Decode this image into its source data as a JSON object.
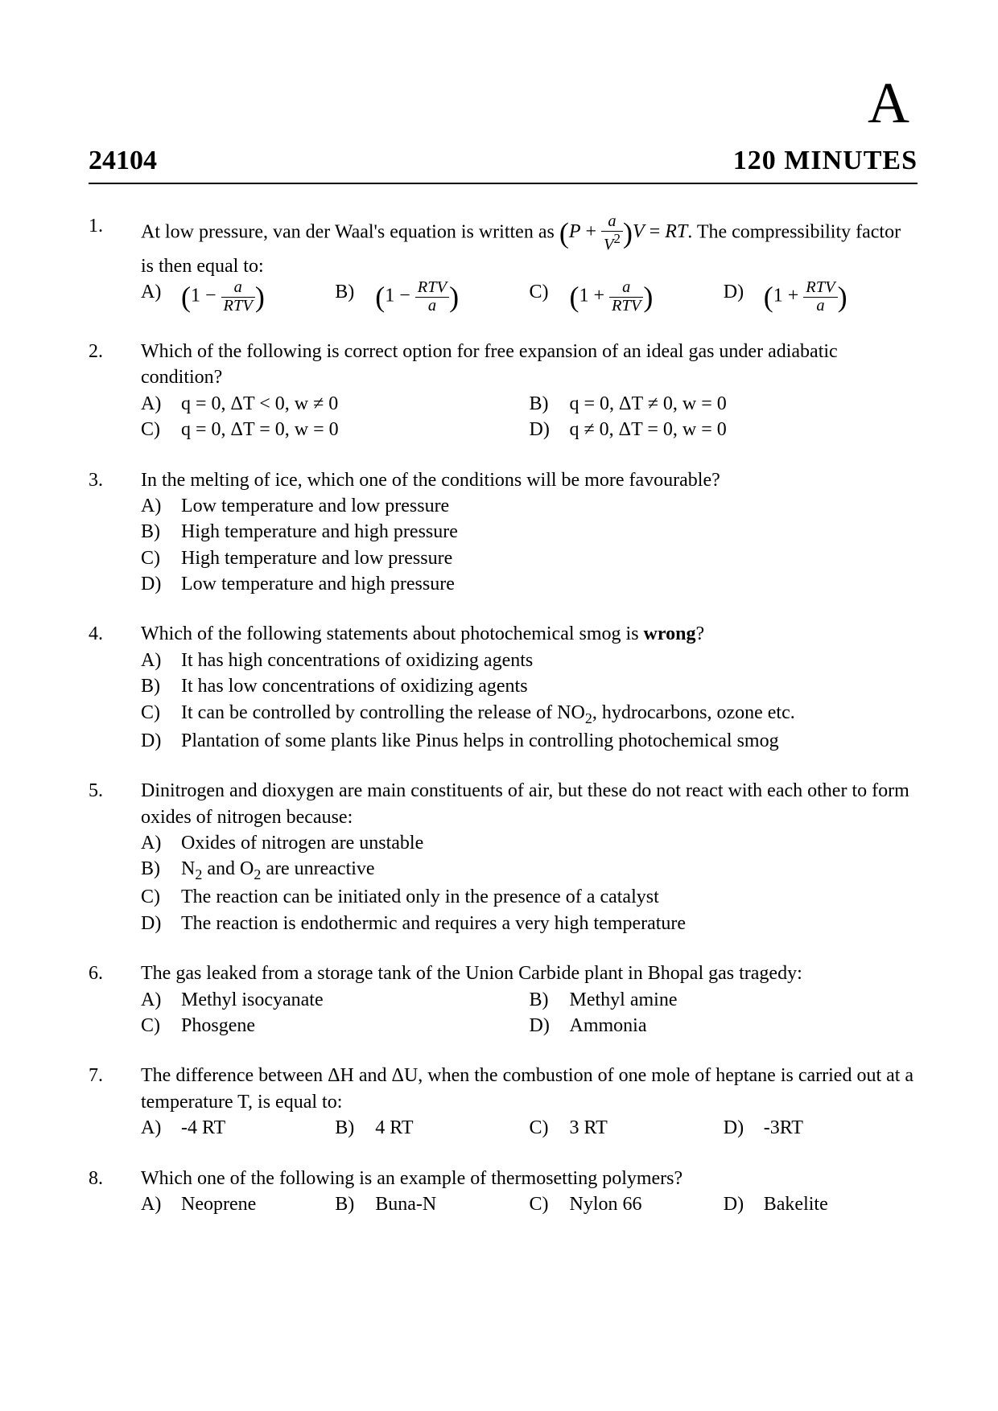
{
  "header": {
    "letter": "A",
    "code": "24104",
    "minutes": "120  MINUTES"
  },
  "q1": {
    "num": "1.",
    "stem_a": "At low pressure, van der Waal's equation is written as ",
    "stem_b": ". The compressibility factor is then equal to:",
    "optA_label": "A)",
    "optB_label": "B)",
    "optC_label": "C)",
    "optD_label": "D)"
  },
  "q2": {
    "num": "2.",
    "stem": "Which of the following is correct option for free expansion of an ideal gas under adiabatic condition?",
    "A_label": "A)",
    "A_text": "q = 0, ΔT < 0, w ≠ 0",
    "B_label": "B)",
    "B_text": "q = 0, ΔT ≠ 0, w = 0",
    "C_label": "C)",
    "C_text": "q = 0, ΔT = 0, w = 0",
    "D_label": "D)",
    "D_text": "q ≠ 0, ΔT = 0, w = 0"
  },
  "q3": {
    "num": "3.",
    "stem": "In the melting of ice, which one of the conditions will be more favourable?",
    "A_label": "A)",
    "A_text": "Low temperature and low pressure",
    "B_label": "B)",
    "B_text": "High temperature and high pressure",
    "C_label": "C)",
    "C_text": "High temperature and low pressure",
    "D_label": "D)",
    "D_text": "Low temperature and high pressure"
  },
  "q4": {
    "num": "4.",
    "stem_a": "Which of the following statements about photochemical smog is ",
    "stem_bold": "wrong",
    "stem_b": "?",
    "A_label": "A)",
    "A_text": "It has high concentrations of oxidizing agents",
    "B_label": "B)",
    "B_text": "It has low concentrations of oxidizing agents",
    "C_label": "C)",
    "C_text_a": "It can be controlled by controlling the release of NO",
    "C_sub": "2",
    "C_text_b": ", hydrocarbons, ozone etc.",
    "D_label": "D)",
    "D_text": "Plantation of some plants like Pinus helps in controlling photochemical smog"
  },
  "q5": {
    "num": "5.",
    "stem": "Dinitrogen and dioxygen are main constituents of air, but these do not react with each other to form oxides of nitrogen because:",
    "A_label": "A)",
    "A_text": "Oxides of nitrogen are unstable",
    "B_label": "B)",
    "B_text_a": "N",
    "B_sub1": "2",
    "B_text_b": " and O",
    "B_sub2": "2",
    "B_text_c": " are unreactive",
    "C_label": "C)",
    "C_text": "The reaction can be initiated only in the presence of a catalyst",
    "D_label": "D)",
    "D_text": "The reaction is endothermic and requires a very high temperature"
  },
  "q6": {
    "num": "6.",
    "stem": "The gas leaked from a storage tank of the Union Carbide plant in Bhopal gas tragedy:",
    "A_label": "A)",
    "A_text": "Methyl isocyanate",
    "B_label": "B)",
    "B_text": "Methyl amine",
    "C_label": "C)",
    "C_text": "Phosgene",
    "D_label": "D)",
    "D_text": "Ammonia"
  },
  "q7": {
    "num": "7.",
    "stem": "The difference between ΔH and ΔU, when the combustion of one mole of heptane is carried out at a temperature T, is equal to:",
    "A_label": "A)",
    "A_text": "-4 RT",
    "B_label": "B)",
    "B_text": "4 RT",
    "C_label": "C)",
    "C_text": "3 RT",
    "D_label": "D)",
    "D_text": "-3RT"
  },
  "q8": {
    "num": "8.",
    "stem": "Which one of the following is an example of thermosetting polymers?",
    "A_label": "A)",
    "A_text": "Neoprene",
    "B_label": "B)",
    "B_text": "Buna-N",
    "C_label": "C)",
    "C_text": "Nylon 66",
    "D_label": "D)",
    "D_text": "Bakelite"
  }
}
